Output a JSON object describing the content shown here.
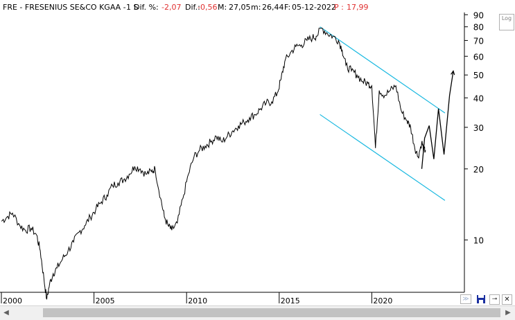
{
  "header": {
    "symbol": "FRE - FRESENIUS SE&CO KGAA - ",
    "period": "1 S",
    "dif_pct_label": "Dif. %:",
    "dif_pct_value": "-2,07",
    "dif_label": "Dif.:",
    "dif_value": "-0,56",
    "max_label": "M:",
    "max_value": "27,05",
    "min_label": "m:",
    "min_value": "26,44",
    "date_label": "F:",
    "date_value": "05-12-2022",
    "price_label": "P :",
    "price_value": "17,99"
  },
  "controls": {
    "log_label": "Log",
    "collapse_glyph": "≫",
    "pin_glyph": "⊸",
    "close_glyph": "✕",
    "scroll_left_glyph": "◀",
    "scroll_right_glyph": "▶"
  },
  "icons": [
    "log-scale-toggle",
    "collapse-icon",
    "save-icon",
    "pin-icon",
    "close-icon"
  ],
  "colors": {
    "price_line": "#000000",
    "channel_line": "#18b8e0",
    "negative_value": "#e03030",
    "save_icon": "#1a2fa0"
  },
  "chart_data": {
    "type": "line",
    "y_scale": "log",
    "ylim": [
      6,
      92
    ],
    "xlim": [
      2000.0,
      2025.0
    ],
    "y_ticks": [
      10,
      20,
      30,
      40,
      50,
      60,
      70,
      80,
      90
    ],
    "x_ticks": [
      "2000",
      "2005",
      "2010",
      "2015",
      "2020"
    ],
    "x_tick_values": [
      2000,
      2005,
      2010,
      2015,
      2020
    ],
    "grid": false,
    "series": [
      {
        "x": [
          2000.0,
          2000.3,
          2000.6,
          2001.0,
          2001.3,
          2001.6,
          2001.9,
          2002.1,
          2002.3,
          2002.45,
          2002.6,
          2002.8,
          2003.0,
          2003.3,
          2003.6,
          2003.9,
          2004.2,
          2004.5,
          2004.8,
          2005.1,
          2005.4,
          2005.7,
          2006.0,
          2006.3,
          2006.6,
          2006.9,
          2007.2,
          2007.5,
          2007.8,
          2008.1,
          2008.3,
          2008.6,
          2008.8,
          2009.0,
          2009.2,
          2009.5,
          2009.8,
          2010.1,
          2010.4,
          2010.7,
          2011.0,
          2011.3,
          2011.6,
          2011.9,
          2012.2,
          2012.5,
          2012.8,
          2013.1,
          2013.4,
          2013.7,
          2014.0,
          2014.3,
          2014.6,
          2014.9,
          2015.1,
          2015.3,
          2015.6,
          2015.9,
          2016.2,
          2016.5,
          2016.8,
          2017.0,
          2017.3,
          2017.6,
          2017.9,
          2018.2,
          2018.4,
          2018.6,
          2018.9,
          2019.2,
          2019.5,
          2019.8,
          2020.0,
          2020.2,
          2020.4,
          2020.7,
          2021.0,
          2021.3,
          2021.6,
          2021.9,
          2022.1,
          2022.3,
          2022.5,
          2022.7,
          2022.8,
          2022.9
        ],
        "values": [
          12.0,
          12.5,
          13.0,
          11.5,
          11.0,
          11.2,
          10.5,
          9.0,
          6.8,
          5.6,
          6.5,
          7.2,
          7.6,
          8.3,
          9.0,
          9.8,
          10.8,
          11.5,
          12.5,
          13.5,
          14.5,
          15.5,
          17.0,
          17.5,
          18.0,
          19.0,
          20.5,
          20.0,
          19.0,
          19.5,
          20.0,
          15.0,
          12.5,
          11.5,
          11.0,
          11.8,
          15.0,
          19.0,
          22.5,
          24.0,
          25.0,
          26.0,
          27.5,
          26.0,
          27.5,
          29.0,
          30.5,
          31.5,
          33.0,
          34.0,
          36.0,
          38.0,
          38.5,
          42.0,
          48.0,
          57.0,
          62.0,
          66.0,
          67.0,
          70.0,
          72.0,
          73.0,
          79.0,
          75.0,
          73.0,
          70.0,
          64.0,
          55.0,
          52.0,
          50.0,
          47.0,
          46.0,
          45.0,
          24.5,
          43.0,
          41.0,
          43.0,
          45.0,
          35.0,
          32.0,
          30.0,
          25.0,
          22.5,
          26.0,
          24.0,
          24.0
        ]
      },
      {
        "x": [
          2022.7,
          2022.85,
          2023.1,
          2023.35,
          2023.6,
          2023.9,
          2024.2,
          2024.4
        ],
        "values": [
          20.0,
          27.0,
          30.5,
          22.0,
          36.0,
          23.0,
          41.0,
          52.0
        ]
      }
    ],
    "channel": [
      {
        "x": [
          2017.2,
          2023.95
        ],
        "values": [
          80.0,
          34.5
        ]
      },
      {
        "x": [
          2017.2,
          2023.95
        ],
        "values": [
          34.0,
          14.7
        ]
      }
    ]
  }
}
